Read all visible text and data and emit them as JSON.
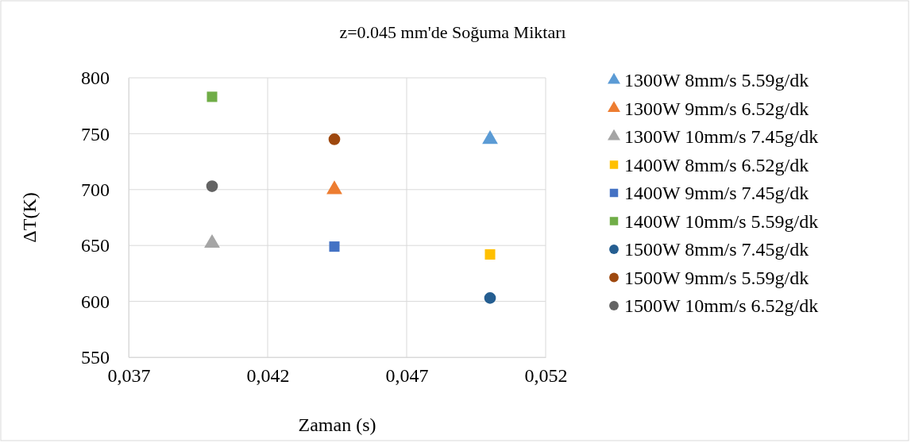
{
  "chart_data": {
    "type": "scatter",
    "title": "z=0.045 mm'de Soğuma Miktarı",
    "xlabel": "Zaman (s)",
    "ylabel": "ΔT(K)",
    "xlim": [
      0.037,
      0.052
    ],
    "xticks": [
      {
        "value": 0.037,
        "label": "0,037"
      },
      {
        "value": 0.042,
        "label": "0,042"
      },
      {
        "value": 0.047,
        "label": "0,047"
      },
      {
        "value": 0.052,
        "label": "0,052"
      }
    ],
    "ylim": [
      550,
      800
    ],
    "yticks": [
      550,
      600,
      650,
      700,
      750,
      800
    ],
    "grid": true,
    "legend": "right",
    "series": [
      {
        "name": "1300W 8mm/s 5.59g/dk",
        "color": "#5b9bd5",
        "marker": "triangle",
        "x": [
          0.05
        ],
        "values": [
          745
        ]
      },
      {
        "name": "1300W 9mm/s 6.52g/dk",
        "color": "#ed7d31",
        "marker": "triangle",
        "x": [
          0.0444
        ],
        "values": [
          700
        ]
      },
      {
        "name": "1300W 10mm/s 7.45g/dk",
        "color": "#a5a5a5",
        "marker": "triangle",
        "x": [
          0.04
        ],
        "values": [
          652
        ]
      },
      {
        "name": "1400W 8mm/s 6.52g/dk",
        "color": "#ffc000",
        "marker": "square",
        "x": [
          0.05
        ],
        "values": [
          642
        ]
      },
      {
        "name": "1400W 9mm/s 7.45g/dk",
        "color": "#4472c4",
        "marker": "square",
        "x": [
          0.0444
        ],
        "values": [
          649
        ]
      },
      {
        "name": "1400W 10mm/s 5.59g/dk",
        "color": "#70ad47",
        "marker": "square",
        "x": [
          0.04
        ],
        "values": [
          783
        ]
      },
      {
        "name": "1500W 8mm/s 7.45g/dk",
        "color": "#255e91",
        "marker": "circle",
        "x": [
          0.05
        ],
        "values": [
          603
        ]
      },
      {
        "name": "1500W 9mm/s 5.59g/dk",
        "color": "#9e480e",
        "marker": "circle",
        "x": [
          0.0444
        ],
        "values": [
          745
        ]
      },
      {
        "name": "1500W 10mm/s 6.52g/dk",
        "color": "#636363",
        "marker": "circle",
        "x": [
          0.04
        ],
        "values": [
          703
        ]
      }
    ]
  }
}
